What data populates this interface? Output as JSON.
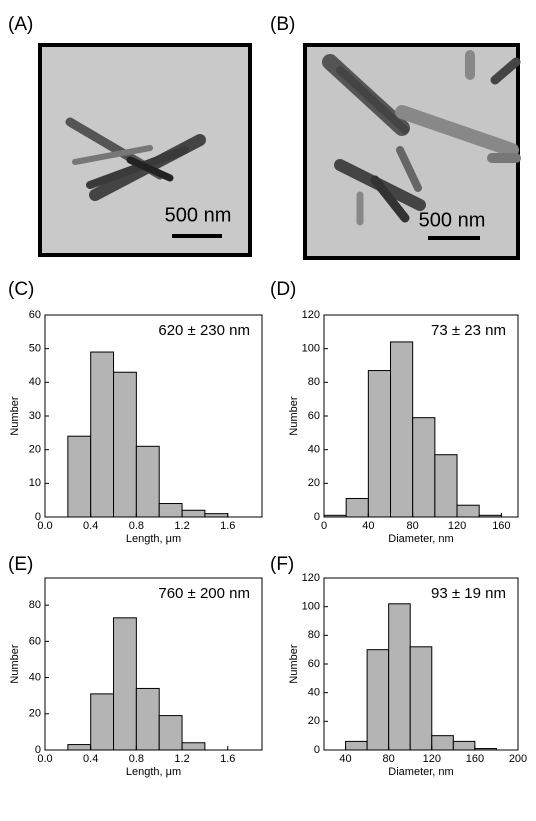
{
  "panel_labels": [
    "(A)",
    "(B)",
    "(C)",
    "(D)",
    "(E)",
    "(F)"
  ],
  "images": [
    {
      "scale_bar": "500 nm"
    },
    {
      "scale_bar": "500 nm"
    }
  ],
  "chart_data": [
    {
      "type": "histogram",
      "annotation": "620 ± 230 nm",
      "xlabel": "Length, μm",
      "ylabel": "Number",
      "color": "#b4b4b4",
      "bins": [
        0.2,
        0.4,
        0.6,
        0.8,
        1.0,
        1.2,
        1.4,
        1.6
      ],
      "values": [
        24,
        49,
        43,
        21,
        4,
        2,
        1
      ],
      "xlim": [
        0,
        1.9
      ],
      "xticks": [
        {
          "value": 0,
          "label": "0.0"
        },
        0.4,
        0.8,
        1.2,
        1.6
      ],
      "ylim": [
        0,
        60
      ],
      "yticks": [
        0,
        10,
        20,
        30,
        40,
        50,
        60
      ]
    },
    {
      "type": "histogram",
      "annotation": "73 ± 23 nm",
      "xlabel": "Diameter, nm",
      "ylabel": "Number",
      "color": "#b4b4b4",
      "bins": [
        0,
        20,
        40,
        60,
        80,
        100,
        120,
        140,
        160
      ],
      "values": [
        1,
        11,
        87,
        104,
        59,
        37,
        7,
        1
      ],
      "xlim": [
        0,
        175
      ],
      "xticks": [
        0,
        40,
        80,
        120,
        160
      ],
      "ylim": [
        0,
        120
      ],
      "yticks": [
        0,
        20,
        40,
        60,
        80,
        100,
        120
      ]
    },
    {
      "type": "histogram",
      "annotation": "760 ± 200 nm",
      "xlabel": "Length, μm",
      "ylabel": "Number",
      "color": "#b4b4b4",
      "bins": [
        0.2,
        0.4,
        0.6,
        0.8,
        1.0,
        1.2,
        1.4
      ],
      "values": [
        3,
        31,
        73,
        34,
        19,
        4
      ],
      "xlim": [
        0,
        1.9
      ],
      "xticks": [
        {
          "value": 0,
          "label": "0.0"
        },
        0.4,
        0.8,
        1.2,
        1.6
      ],
      "ylim": [
        0,
        95
      ],
      "yticks": [
        0,
        20,
        40,
        60,
        80
      ]
    },
    {
      "type": "histogram",
      "annotation": "93 ± 19 nm",
      "xlabel": "Diameter, nm",
      "ylabel": "Number",
      "color": "#b4b4b4",
      "bins": [
        40,
        60,
        80,
        100,
        120,
        140,
        160,
        180
      ],
      "values": [
        6,
        70,
        102,
        72,
        10,
        6,
        1
      ],
      "xlim": [
        20,
        200
      ],
      "xticks": [
        40,
        80,
        120,
        160,
        200
      ],
      "ylim": [
        0,
        120
      ],
      "yticks": [
        0,
        20,
        40,
        60,
        80,
        100,
        120
      ]
    }
  ]
}
